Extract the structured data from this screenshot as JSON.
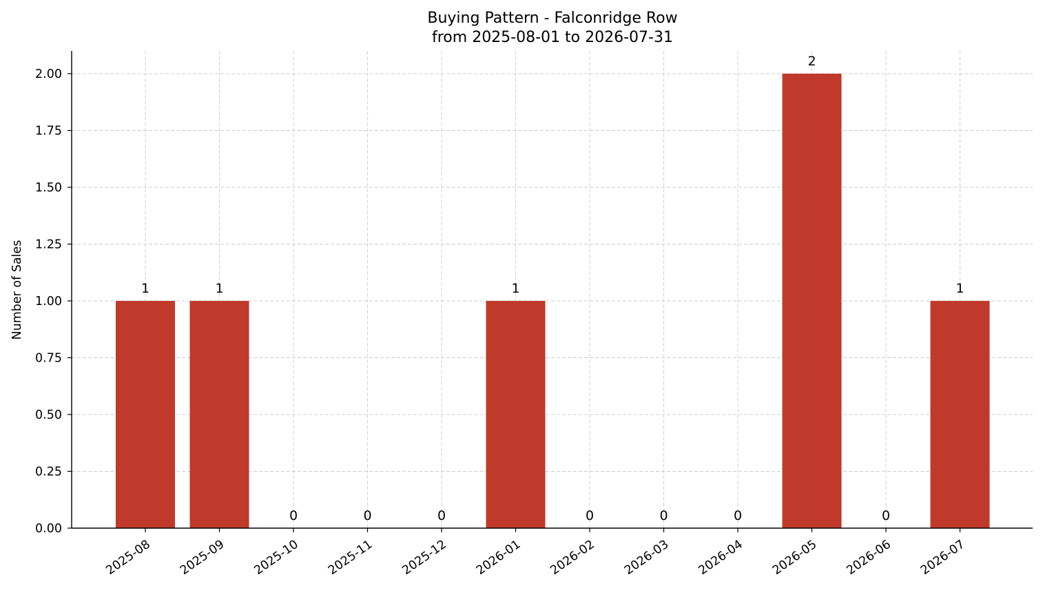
{
  "chart_data": {
    "type": "bar",
    "title": "Buying Pattern - Falconridge Row",
    "subtitle": "from 2025-08-01 to 2026-07-31",
    "xlabel": "",
    "ylabel": "Number of Sales",
    "categories": [
      "2025-08",
      "2025-09",
      "2025-10",
      "2025-11",
      "2025-12",
      "2026-01",
      "2026-02",
      "2026-03",
      "2026-04",
      "2026-05",
      "2026-06",
      "2026-07"
    ],
    "values": [
      1,
      1,
      0,
      0,
      0,
      1,
      0,
      0,
      0,
      2,
      0,
      1
    ],
    "data_labels": [
      "1",
      "1",
      "0",
      "0",
      "0",
      "1",
      "0",
      "0",
      "0",
      "2",
      "0",
      "1"
    ],
    "ylim": [
      0,
      2.1
    ],
    "yticks": [
      0,
      0.25,
      0.5,
      0.75,
      1.0,
      1.25,
      1.5,
      1.75,
      2.0
    ],
    "ytick_labels": [
      "0.00",
      "0.25",
      "0.50",
      "0.75",
      "1.00",
      "1.25",
      "1.50",
      "1.75",
      "2.00"
    ],
    "grid": true,
    "bar_color": "#c0392b",
    "xtick_rotation": "35 degrees"
  }
}
